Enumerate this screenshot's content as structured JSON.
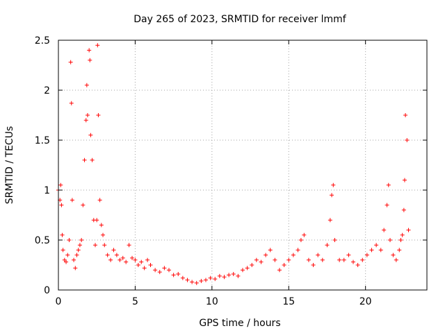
{
  "chart_data": {
    "type": "scatter",
    "title": "Day 265 of 2023, SRMTID for receiver lmmf",
    "xlabel": "GPS time / hours",
    "ylabel": "SRMTID / TECUs",
    "xlim": [
      0,
      24
    ],
    "ylim": [
      0,
      2.5
    ],
    "xticks": [
      "0",
      "5",
      "10",
      "15",
      "20"
    ],
    "xtick_values": [
      0,
      5,
      10,
      15,
      20
    ],
    "yticks": [
      "0",
      "0.5",
      "1",
      "1.5",
      "2",
      "2.5"
    ],
    "ytick_values": [
      0,
      0.5,
      1,
      1.5,
      2,
      2.5
    ],
    "grid": true,
    "marker": "+",
    "marker_color": "#ff0000",
    "series": [
      {
        "name": "SRMTID",
        "x": [
          0.0,
          0.1,
          0.15,
          0.2,
          0.25,
          0.3,
          0.4,
          0.5,
          0.6,
          0.7,
          0.8,
          0.85,
          0.9,
          1.0,
          1.1,
          1.2,
          1.3,
          1.4,
          1.5,
          1.6,
          1.7,
          1.8,
          1.85,
          1.9,
          2.0,
          2.05,
          2.1,
          2.2,
          2.3,
          2.4,
          2.5,
          2.55,
          2.6,
          2.7,
          2.8,
          2.9,
          3.0,
          3.2,
          3.4,
          3.6,
          3.8,
          4.0,
          4.2,
          4.4,
          4.6,
          4.8,
          5.0,
          5.2,
          5.4,
          5.6,
          5.8,
          6.0,
          6.3,
          6.6,
          6.9,
          7.2,
          7.5,
          7.8,
          8.1,
          8.4,
          8.7,
          9.0,
          9.3,
          9.6,
          9.9,
          10.2,
          10.5,
          10.8,
          11.1,
          11.4,
          11.7,
          12.0,
          12.3,
          12.6,
          12.9,
          13.2,
          13.5,
          13.8,
          14.1,
          14.4,
          14.7,
          15.0,
          15.3,
          15.6,
          15.8,
          16.0,
          16.3,
          16.6,
          16.9,
          17.2,
          17.5,
          17.7,
          17.8,
          17.9,
          18.0,
          18.3,
          18.6,
          18.9,
          19.2,
          19.5,
          19.8,
          20.1,
          20.4,
          20.7,
          21.0,
          21.2,
          21.4,
          21.5,
          21.6,
          21.8,
          22.0,
          22.2,
          22.3,
          22.4,
          22.5,
          22.55,
          22.6,
          22.7,
          22.8
        ],
        "y": [
          1.0,
          0.9,
          1.05,
          0.85,
          0.55,
          0.4,
          0.3,
          0.28,
          0.35,
          0.5,
          2.28,
          1.87,
          0.9,
          0.3,
          0.22,
          0.35,
          0.4,
          0.45,
          0.5,
          0.85,
          1.3,
          1.7,
          2.05,
          1.75,
          2.4,
          2.3,
          1.55,
          1.3,
          0.7,
          0.45,
          0.7,
          2.45,
          1.75,
          0.9,
          0.65,
          0.55,
          0.45,
          0.35,
          0.3,
          0.4,
          0.35,
          0.3,
          0.32,
          0.28,
          0.45,
          0.32,
          0.3,
          0.25,
          0.28,
          0.22,
          0.3,
          0.25,
          0.2,
          0.18,
          0.22,
          0.2,
          0.15,
          0.16,
          0.12,
          0.1,
          0.08,
          0.07,
          0.09,
          0.1,
          0.12,
          0.11,
          0.14,
          0.13,
          0.15,
          0.16,
          0.14,
          0.2,
          0.22,
          0.25,
          0.3,
          0.28,
          0.35,
          0.4,
          0.3,
          0.2,
          0.25,
          0.3,
          0.35,
          0.4,
          0.5,
          0.55,
          0.3,
          0.25,
          0.35,
          0.3,
          0.45,
          0.7,
          0.95,
          1.05,
          0.5,
          0.3,
          0.3,
          0.35,
          0.28,
          0.25,
          0.3,
          0.35,
          0.4,
          0.45,
          0.4,
          0.6,
          0.85,
          1.05,
          0.5,
          0.35,
          0.3,
          0.4,
          0.5,
          0.55,
          0.8,
          1.1,
          1.75,
          1.5,
          0.6
        ]
      }
    ]
  }
}
